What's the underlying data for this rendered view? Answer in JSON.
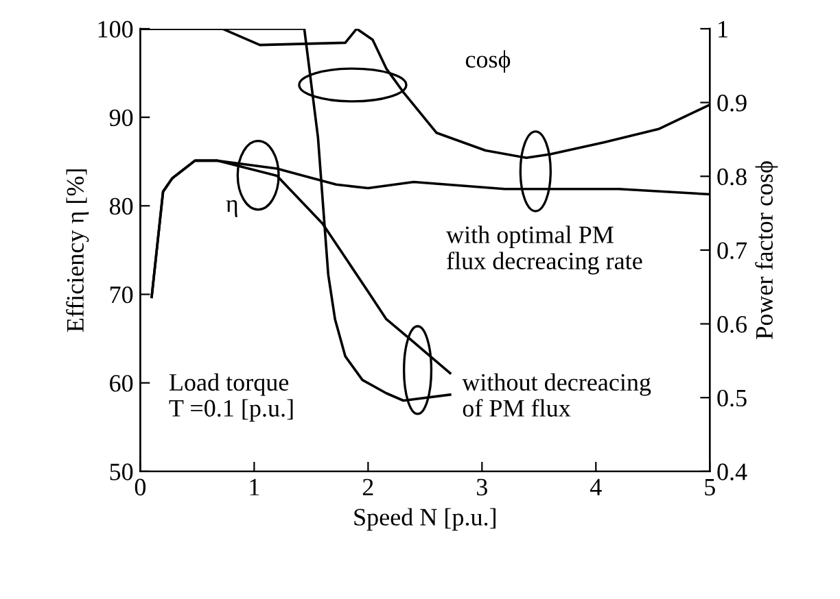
{
  "chart_data": {
    "type": "line",
    "xlabel": "Speed N [p.u.]",
    "ylabel": "Efficiency η [%]",
    "y2label": "Power factor cosϕ",
    "xlim": [
      0,
      5
    ],
    "xticks": [
      0,
      1,
      2,
      3,
      4,
      5
    ],
    "ylim": [
      50,
      100
    ],
    "yticks": [
      50,
      60,
      70,
      80,
      90,
      100
    ],
    "y2lim": [
      0.4,
      1
    ],
    "y2ticks": [
      0.4,
      0.5,
      0.6,
      0.7,
      0.8,
      0.9,
      1
    ],
    "grid": false,
    "legend": false,
    "marker": "none",
    "line_style": "solid",
    "series": [
      {
        "color": "#000000",
        "x": [
          0.1,
          0.2,
          0.28,
          0.48,
          0.68,
          1.2,
          1.72,
          2.0,
          2.4,
          3.2,
          4.2,
          5.0
        ],
        "values": [
          69.7,
          81.6,
          83.1,
          85.1,
          85.1,
          84.2,
          82.4,
          82.0,
          82.7,
          81.9,
          81.9,
          81.3
        ]
      },
      {
        "color": "#000000",
        "x": [
          0.1,
          0.2,
          0.28,
          0.48,
          0.68,
          1.2,
          1.6,
          2.0,
          2.16,
          2.4,
          2.72
        ],
        "values": [
          69.7,
          81.6,
          83.1,
          85.1,
          85.1,
          83.4,
          78.0,
          70.3,
          67.2,
          64.6,
          61.1
        ]
      },
      {
        "color": "#000000",
        "axis": "y2",
        "x": [
          0.02,
          0.72,
          1.05,
          1.8,
          1.9,
          2.04,
          2.16,
          2.31,
          2.6,
          3.03,
          3.39,
          3.6,
          4.07,
          4.55,
          5.0
        ],
        "values": [
          1.0,
          1.0,
          0.978,
          0.981,
          1.0,
          0.985,
          0.946,
          0.914,
          0.859,
          0.835,
          0.825,
          0.83,
          0.846,
          0.864,
          0.897
        ]
      },
      {
        "color": "#000000",
        "axis": "y2",
        "x": [
          0.02,
          1.4,
          1.44,
          1.56,
          1.65,
          1.71,
          1.8,
          1.95,
          2.16,
          2.31,
          2.72
        ],
        "values": [
          1.0,
          1.0,
          1.0,
          0.853,
          0.667,
          0.606,
          0.556,
          0.524,
          0.506,
          0.496,
          0.504
        ]
      }
    ],
    "annotations": [
      "cosϕ",
      "η",
      "with optimal PM\nflux decreacing rate",
      "without decreacing\nof PM flux",
      "Load torque\nT =0.1 [p.u.]"
    ]
  }
}
